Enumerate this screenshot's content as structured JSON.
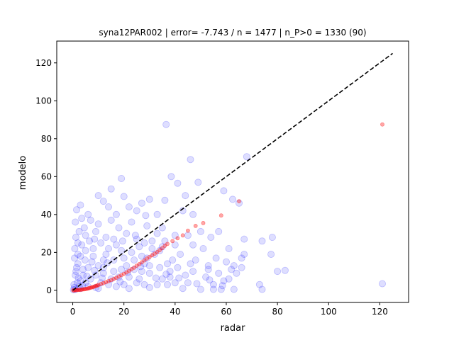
{
  "chart_data": {
    "type": "scatter",
    "title": "syna12PAR002 | error= -7.743 / n = 1477 | n_P>0 = 1330 (90)",
    "xlabel": "radar",
    "ylabel": "modelo",
    "xlim": [
      -6.25,
      131.25
    ],
    "ylim": [
      -6.4,
      131.5
    ],
    "xticks": [
      0,
      20,
      40,
      60,
      80,
      100,
      120
    ],
    "yticks": [
      0,
      20,
      40,
      60,
      80,
      100,
      120
    ],
    "grid": false,
    "legend": "none",
    "colors": {
      "scatter": "#0000ff",
      "quantile": "#ff0000",
      "reference_line": "#000000"
    },
    "reference_line": {
      "style": "dashed",
      "x": [
        0,
        125
      ],
      "y": [
        0,
        125
      ]
    },
    "series": [
      {
        "kind": "pairs",
        "points": [
          [
            36.5,
            87.5
          ],
          [
            121.0,
            3.5
          ],
          [
            46.0,
            69.0
          ],
          [
            68.0,
            70.5
          ],
          [
            38.5,
            60.0
          ],
          [
            36.0,
            47.5
          ],
          [
            59.0,
            52.5
          ],
          [
            62.5,
            48.0
          ],
          [
            65.0,
            46.0
          ],
          [
            78.0,
            28.0
          ],
          [
            77.5,
            19.0
          ],
          [
            74.0,
            26.0
          ],
          [
            80.0,
            10.0
          ],
          [
            83.0,
            10.5
          ],
          [
            73.0,
            3.0
          ],
          [
            74.0,
            0.5
          ],
          [
            63.0,
            0.5
          ],
          [
            60.0,
            15.0
          ],
          [
            67.0,
            27.0
          ],
          [
            61.0,
            22.0
          ],
          [
            67.0,
            19.0
          ],
          [
            57.0,
            31.0
          ],
          [
            54.0,
            28.0
          ],
          [
            44.0,
            50.0
          ],
          [
            49.0,
            57.0
          ],
          [
            43.0,
            42.0
          ],
          [
            47.0,
            40.0
          ],
          [
            50.0,
            31.0
          ],
          [
            53.0,
            13.0
          ],
          [
            53.0,
            11.0
          ],
          [
            55.0,
            3.0
          ],
          [
            55.0,
            0.5
          ],
          [
            58.0,
            0.5
          ],
          [
            59.0,
            5.0
          ],
          [
            62.0,
            11.0
          ],
          [
            63.0,
            13.0
          ],
          [
            66.0,
            12.0
          ],
          [
            66.0,
            17.0
          ],
          [
            41.0,
            56.5
          ],
          [
            28.5,
            39.5
          ],
          [
            30.0,
            48.0
          ],
          [
            25.0,
            42.0
          ],
          [
            19.0,
            59.0
          ],
          [
            15.0,
            53.5
          ],
          [
            10.0,
            50.0
          ],
          [
            14.0,
            44.0
          ],
          [
            20.0,
            49.5
          ],
          [
            3.5,
            38.0
          ],
          [
            1.5,
            42.5
          ],
          [
            1.0,
            36.0
          ],
          [
            7.0,
            37.0
          ],
          [
            15.0,
            37.0
          ],
          [
            17.0,
            40.0
          ],
          [
            33.0,
            40.0
          ],
          [
            29.0,
            34.0
          ],
          [
            36.0,
            26.0
          ],
          [
            40.0,
            29.0
          ],
          [
            47.0,
            24.0
          ],
          [
            34.0,
            21.0
          ],
          [
            27.0,
            18.0
          ],
          [
            30.0,
            13.0
          ],
          [
            24.0,
            11.0
          ],
          [
            45.0,
            4.0
          ],
          [
            47.0,
            10.0
          ],
          [
            33.0,
            3.0
          ],
          [
            26.0,
            6.0
          ],
          [
            20.0,
            3.0
          ],
          [
            12.0,
            9.0
          ],
          [
            16.0,
            16.0
          ],
          [
            11.0,
            25.0
          ],
          [
            5.0,
            29.0
          ],
          [
            8.0,
            22.0
          ],
          [
            21.0,
            30.0
          ],
          [
            25.0,
            27.0
          ],
          [
            6.0,
            12.0
          ],
          [
            3.0,
            18.0
          ],
          [
            1.0,
            8.0
          ],
          [
            3.0,
            5.0
          ],
          [
            2.0,
            14.0
          ],
          [
            9.0,
            1.5
          ],
          [
            14.0,
            3.0
          ],
          [
            18.0,
            7.0
          ],
          [
            38.0,
            10.0
          ],
          [
            41.0,
            12.0
          ],
          [
            35.0,
            6.0
          ],
          [
            30.0,
            9.0
          ],
          [
            23.0,
            20.0
          ],
          [
            12.0,
            16.0
          ],
          [
            7.0,
            6.0
          ],
          [
            4.0,
            11.0
          ],
          [
            2.5,
            2.0
          ],
          [
            10.0,
            13.0
          ],
          [
            16.0,
            10.0
          ],
          [
            22.0,
            1.0
          ],
          [
            28.0,
            3.0
          ],
          [
            43.0,
            1.0
          ],
          [
            50.0,
            0.5
          ],
          [
            39.0,
            16.0
          ],
          [
            31.0,
            26.0
          ],
          [
            19.0,
            21.0
          ],
          [
            0.5,
            3.0
          ],
          [
            0.8,
            22.0
          ],
          [
            1.2,
            28.0
          ],
          [
            2.0,
            25.0
          ],
          [
            4.5,
            33.0
          ],
          [
            9.0,
            31.0
          ],
          [
            13.0,
            28.0
          ],
          [
            17.0,
            24.0
          ],
          [
            26.0,
            23.0
          ],
          [
            32.0,
            19.0
          ],
          [
            37.0,
            14.0
          ],
          [
            42.0,
            19.0
          ],
          [
            48.0,
            16.0
          ],
          [
            52.0,
            7.0
          ],
          [
            57.0,
            9.0
          ],
          [
            44.0,
            8.0
          ],
          [
            37.0,
            3.0
          ],
          [
            28.0,
            14.0
          ],
          [
            21.0,
            13.0
          ],
          [
            8.0,
            18.0
          ],
          [
            5.0,
            21.0
          ],
          [
            3.0,
            1.0
          ],
          [
            6.0,
            2.0
          ],
          [
            11.0,
            4.0
          ],
          [
            15.0,
            6.0
          ],
          [
            19.0,
            11.0
          ],
          [
            24.0,
            16.0
          ],
          [
            13.0,
            19.0
          ],
          [
            9.0,
            8.0
          ],
          [
            1.5,
            12.0
          ],
          [
            0.7,
            17.0
          ],
          [
            2.5,
            31.0
          ],
          [
            6.5,
            26.0
          ],
          [
            18.0,
            33.0
          ],
          [
            23.0,
            36.0
          ],
          [
            35.0,
            33.0
          ],
          [
            31.0,
            22.0
          ],
          [
            40.0,
            24.0
          ],
          [
            45.0,
            29.0
          ],
          [
            51.0,
            22.0
          ],
          [
            38.0,
            7.0
          ],
          [
            34.0,
            12.0
          ],
          [
            27.0,
            10.0
          ],
          [
            22.0,
            7.0
          ],
          [
            17.0,
            2.0
          ],
          [
            10.0,
            1.0
          ],
          [
            5.0,
            4.0
          ],
          [
            4.0,
            8.0
          ],
          [
            12.0,
            12.0
          ],
          [
            20.0,
            17.0
          ],
          [
            28.0,
            25.0
          ],
          [
            33.0,
            30.0
          ],
          [
            7.5,
            15.0
          ],
          [
            3.5,
            24.0
          ],
          [
            2.0,
            19.0
          ],
          [
            14.0,
            22.0
          ],
          [
            25.0,
            4.0
          ],
          [
            30.0,
            1.5
          ],
          [
            40.0,
            4.0
          ],
          [
            46.0,
            14.0
          ],
          [
            56.0,
            17.0
          ],
          [
            61.0,
            6.0
          ],
          [
            64.0,
            9.0
          ],
          [
            35.0,
            23.0
          ],
          [
            29.0,
            17.0
          ],
          [
            16.0,
            27.0
          ],
          [
            10.0,
            35.0
          ],
          [
            6.0,
            40.0
          ],
          [
            22.0,
            44.0
          ],
          [
            27.0,
            46.0
          ],
          [
            12.0,
            47.0
          ],
          [
            3.0,
            45.0
          ],
          [
            1.0,
            0.5
          ],
          [
            0.3,
            0.3
          ],
          [
            0.6,
            1.5
          ],
          [
            1.8,
            4.0
          ],
          [
            2.2,
            6.5
          ],
          [
            3.8,
            2.5
          ],
          [
            5.5,
            7.5
          ],
          [
            8.5,
            10.5
          ],
          [
            11.5,
            6.5
          ],
          [
            13.5,
            14.5
          ],
          [
            18.5,
            4.5
          ],
          [
            21.5,
            9.5
          ],
          [
            26.5,
            12.5
          ],
          [
            32.5,
            6.5
          ],
          [
            36.5,
            8.5
          ],
          [
            41.5,
            6.5
          ],
          [
            48.5,
            3.5
          ],
          [
            53.5,
            5.5
          ],
          [
            58.5,
            2.5
          ],
          [
            24.5,
            29.0
          ],
          [
            19.5,
            26.0
          ],
          [
            8.5,
            27.0
          ],
          [
            4.8,
            16.0
          ],
          [
            1.3,
            10.0
          ]
        ]
      },
      {
        "kind": "quantile",
        "points": [
          [
            0.2,
            0.0
          ],
          [
            0.5,
            0.0
          ],
          [
            1.0,
            0.1
          ],
          [
            1.5,
            0.1
          ],
          [
            2.0,
            0.2
          ],
          [
            2.5,
            0.3
          ],
          [
            3.0,
            0.3
          ],
          [
            3.5,
            0.4
          ],
          [
            4.0,
            0.5
          ],
          [
            4.5,
            0.6
          ],
          [
            5.0,
            0.7
          ],
          [
            5.5,
            0.8
          ],
          [
            6.0,
            1.0
          ],
          [
            6.5,
            1.2
          ],
          [
            7.0,
            1.4
          ],
          [
            7.5,
            1.6
          ],
          [
            8.0,
            1.8
          ],
          [
            8.5,
            2.0
          ],
          [
            9.0,
            2.3
          ],
          [
            9.5,
            2.5
          ],
          [
            10.0,
            2.8
          ],
          [
            11.0,
            3.3
          ],
          [
            12.0,
            3.8
          ],
          [
            13.0,
            4.3
          ],
          [
            14.0,
            4.9
          ],
          [
            15.0,
            5.4
          ],
          [
            16.0,
            6.0
          ],
          [
            17.0,
            6.6
          ],
          [
            18.0,
            7.3
          ],
          [
            19.0,
            8.0
          ],
          [
            20.0,
            8.7
          ],
          [
            21.0,
            9.5
          ],
          [
            22.0,
            10.3
          ],
          [
            23.0,
            11.2
          ],
          [
            24.0,
            12.0
          ],
          [
            25.0,
            13.0
          ],
          [
            26.0,
            13.8
          ],
          [
            27.0,
            14.8
          ],
          [
            28.0,
            15.8
          ],
          [
            29.0,
            16.8
          ],
          [
            30.0,
            17.6
          ],
          [
            31.0,
            18.5
          ],
          [
            32.0,
            19.3
          ],
          [
            33.0,
            20.2
          ],
          [
            34.0,
            21.2
          ],
          [
            35.0,
            22.3
          ],
          [
            36.0,
            23.5
          ],
          [
            37.0,
            24.5
          ],
          [
            39.0,
            26.0
          ],
          [
            41.0,
            27.5
          ],
          [
            43.0,
            29.0
          ],
          [
            45.0,
            31.5
          ],
          [
            48.0,
            34.0
          ],
          [
            51.0,
            35.5
          ],
          [
            58.0,
            39.5
          ],
          [
            65.0,
            47.0
          ],
          [
            121.0,
            87.5
          ]
        ]
      }
    ]
  }
}
